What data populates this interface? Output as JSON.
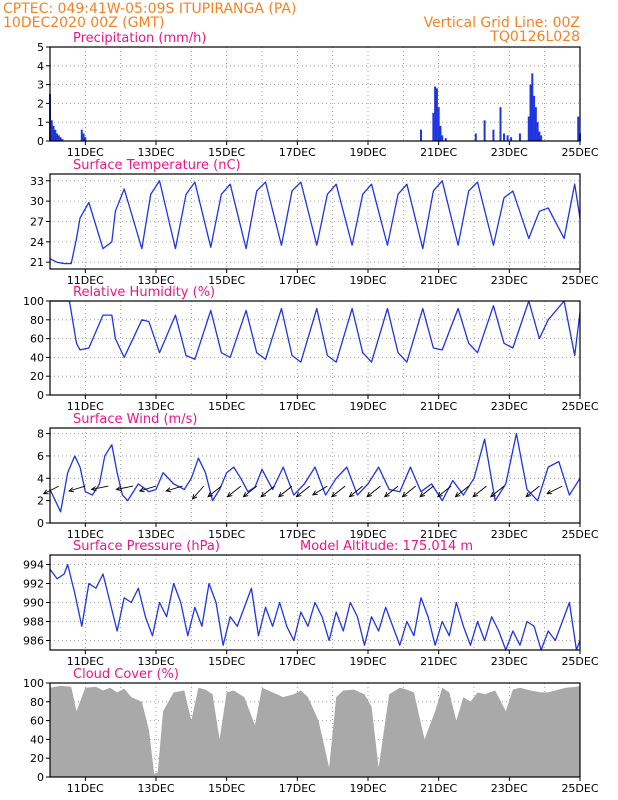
{
  "header": {
    "station_line": "CPTEC:   049:41W-05:09S   ITUPIRANGA (PA)",
    "run_line": "10DEC2020 00Z (GMT)",
    "grid_note": "Vertical Grid Line: 00Z",
    "model_code": "TQ0126L028"
  },
  "colors": {
    "header": "#f58220",
    "titles": "#e8168c",
    "series": "#1f35e0",
    "cloud": "#a9a9a9",
    "frame": "#000000"
  },
  "time_axis": {
    "start_day": 10,
    "end_day": 25,
    "tick_labels": [
      "11DEC",
      "13DEC",
      "15DEC",
      "17DEC",
      "19DEC",
      "21DEC",
      "23DEC",
      "25DEC"
    ],
    "tick_days": [
      11,
      13,
      15,
      17,
      19,
      21,
      23,
      25
    ],
    "vertical_grid": "00Z"
  },
  "chart_data": [
    {
      "type": "bar",
      "title": "Precipitation (mm/h)",
      "ylim": [
        0,
        5
      ],
      "yticks": [
        0,
        1,
        2,
        3,
        4,
        5
      ],
      "x": [
        10.0,
        10.05,
        10.1,
        10.15,
        10.2,
        10.25,
        10.3,
        10.35,
        10.9,
        10.95,
        11.0,
        20.5,
        20.85,
        20.9,
        20.95,
        21.0,
        21.05,
        21.1,
        21.2,
        22.05,
        22.3,
        22.55,
        22.75,
        22.85,
        22.95,
        23.05,
        23.3,
        23.55,
        23.6,
        23.65,
        23.7,
        23.75,
        23.8,
        23.85,
        23.9,
        24.95,
        25.0
      ],
      "values": [
        2.5,
        1.1,
        0.8,
        0.6,
        0.4,
        0.3,
        0.2,
        0.1,
        0.6,
        0.4,
        0.2,
        0.6,
        1.5,
        2.9,
        2.8,
        1.8,
        0.8,
        0.3,
        0.15,
        0.4,
        1.1,
        0.6,
        1.8,
        0.4,
        0.3,
        0.2,
        0.4,
        1.3,
        3.0,
        3.6,
        2.4,
        1.8,
        1.0,
        0.5,
        0.3,
        1.3,
        0.4
      ]
    },
    {
      "type": "line",
      "title": "Surface Temperature (nC)",
      "ylim": [
        20,
        34
      ],
      "yticks": [
        21,
        24,
        27,
        30,
        33
      ],
      "x": [
        10.0,
        10.2,
        10.4,
        10.6,
        10.75,
        10.85,
        11.1,
        11.5,
        11.75,
        11.85,
        12.1,
        12.6,
        12.85,
        13.1,
        13.55,
        13.85,
        14.1,
        14.55,
        14.85,
        15.1,
        15.55,
        15.85,
        16.1,
        16.55,
        16.85,
        17.1,
        17.55,
        17.85,
        18.1,
        18.55,
        18.85,
        19.1,
        19.55,
        19.85,
        20.1,
        20.55,
        20.85,
        21.1,
        21.55,
        21.85,
        22.1,
        22.55,
        22.85,
        23.1,
        23.55,
        23.85,
        24.1,
        24.55,
        24.85,
        25.0
      ],
      "series": [
        {
          "values": [
            21.5,
            21.0,
            20.8,
            20.8,
            24.5,
            27.5,
            29.8,
            23.0,
            24.0,
            28.5,
            31.8,
            23.0,
            31.0,
            33.0,
            23.0,
            31.0,
            32.8,
            23.2,
            31.0,
            32.5,
            23.0,
            31.5,
            32.8,
            23.5,
            31.5,
            32.8,
            23.5,
            31.0,
            32.5,
            23.5,
            31.0,
            32.5,
            23.5,
            31.0,
            32.5,
            23.0,
            31.5,
            33.0,
            23.5,
            31.5,
            32.8,
            23.5,
            30.5,
            31.5,
            24.5,
            28.5,
            29.0,
            24.5,
            32.5,
            27.5
          ]
        }
      ]
    },
    {
      "type": "line",
      "title": "Relative Humidity (%)",
      "ylim": [
        0,
        100
      ],
      "yticks": [
        0,
        20,
        40,
        60,
        80,
        100
      ],
      "x": [
        10.0,
        10.3,
        10.55,
        10.75,
        10.85,
        11.1,
        11.5,
        11.75,
        11.85,
        12.1,
        12.6,
        12.8,
        13.1,
        13.55,
        13.85,
        14.1,
        14.55,
        14.85,
        15.1,
        15.55,
        15.85,
        16.1,
        16.55,
        16.85,
        17.1,
        17.55,
        17.85,
        18.1,
        18.55,
        18.85,
        19.1,
        19.55,
        19.85,
        20.1,
        20.55,
        20.85,
        21.1,
        21.55,
        21.85,
        22.1,
        22.55,
        22.85,
        23.1,
        23.55,
        23.85,
        24.1,
        24.55,
        24.85,
        25.0
      ],
      "series": [
        {
          "values": [
            100,
            100,
            100,
            55,
            48,
            50,
            85,
            85,
            60,
            40,
            80,
            78,
            45,
            85,
            42,
            38,
            90,
            45,
            40,
            90,
            45,
            38,
            92,
            42,
            35,
            92,
            42,
            35,
            92,
            45,
            35,
            92,
            45,
            35,
            92,
            50,
            48,
            92,
            55,
            45,
            95,
            55,
            50,
            100,
            60,
            80,
            100,
            42,
            88
          ]
        }
      ]
    },
    {
      "type": "line",
      "title": "Surface Wind (m/s)",
      "ylim": [
        0,
        8.5
      ],
      "yticks": [
        0,
        2,
        4,
        6,
        8
      ],
      "x": [
        10.0,
        10.15,
        10.3,
        10.5,
        10.7,
        10.85,
        11.0,
        11.2,
        11.4,
        11.55,
        11.75,
        11.9,
        12.05,
        12.2,
        12.5,
        12.8,
        13.0,
        13.2,
        13.5,
        13.8,
        14.0,
        14.2,
        14.4,
        14.6,
        14.8,
        15.0,
        15.2,
        15.4,
        15.6,
        15.8,
        16.0,
        16.3,
        16.6,
        16.9,
        17.2,
        17.5,
        17.8,
        18.1,
        18.4,
        18.7,
        19.0,
        19.3,
        19.6,
        19.9,
        20.2,
        20.5,
        20.8,
        21.1,
        21.4,
        21.7,
        22.0,
        22.3,
        22.6,
        22.9,
        23.2,
        23.5,
        23.8,
        24.1,
        24.4,
        24.7,
        25.0
      ],
      "series": [
        {
          "values": [
            3.0,
            2.0,
            1.0,
            4.5,
            6.0,
            5.0,
            2.8,
            2.5,
            3.5,
            6.0,
            7.0,
            4.5,
            2.5,
            2.0,
            3.5,
            2.8,
            3.0,
            4.5,
            3.5,
            3.0,
            4.0,
            5.8,
            4.5,
            2.0,
            3.0,
            4.5,
            5.0,
            4.0,
            2.8,
            3.2,
            4.8,
            3.0,
            5.0,
            2.5,
            3.5,
            5.0,
            2.5,
            4.0,
            5.0,
            2.5,
            3.5,
            5.0,
            3.0,
            2.8,
            5.0,
            2.8,
            3.5,
            2.0,
            3.8,
            2.5,
            4.0,
            7.5,
            2.0,
            3.5,
            8.0,
            3.0,
            2.0,
            5.0,
            5.5,
            2.5,
            4.0
          ]
        }
      ],
      "wind_vectors": {
        "x": [
          10.25,
          11.0,
          11.65,
          12.35,
          13.0,
          13.75,
          14.35,
          14.85,
          15.4,
          15.85,
          16.35,
          16.85,
          17.35,
          17.85,
          18.35,
          18.85,
          19.35,
          19.85,
          20.35,
          20.85,
          21.35,
          21.85,
          22.35,
          22.85,
          23.85,
          24.5
        ],
        "u": [
          -1.0,
          -1.0,
          -1.0,
          -1.0,
          -1.0,
          -1.0,
          -0.7,
          -1.0,
          -1.0,
          -1.0,
          -1.0,
          -1.0,
          -1.0,
          -1.0,
          -1.0,
          -1.0,
          -1.0,
          -1.0,
          -1.0,
          -1.0,
          -1.0,
          -1.0,
          -1.0,
          -1.0,
          -1.0,
          -1.0
        ],
        "v": [
          -0.5,
          -0.3,
          -0.2,
          -0.2,
          -0.3,
          -0.3,
          -0.8,
          -0.8,
          -0.8,
          -0.8,
          -0.8,
          -0.8,
          -0.8,
          -0.6,
          -0.8,
          -0.8,
          -0.8,
          -0.8,
          -0.8,
          -0.8,
          -0.8,
          -0.8,
          -0.8,
          -0.8,
          -0.8,
          -0.5
        ]
      }
    },
    {
      "type": "line",
      "title": "Surface Pressure (hPa)",
      "annotation": "Model Altitude: 175.014 m",
      "ylim": [
        985,
        995
      ],
      "yticks": [
        986,
        988,
        990,
        992,
        994
      ],
      "x": [
        10.0,
        10.2,
        10.4,
        10.5,
        10.7,
        10.9,
        11.1,
        11.3,
        11.5,
        11.7,
        11.9,
        12.1,
        12.3,
        12.5,
        12.7,
        12.9,
        13.1,
        13.3,
        13.5,
        13.7,
        13.9,
        14.1,
        14.3,
        14.5,
        14.7,
        14.9,
        15.1,
        15.3,
        15.5,
        15.7,
        15.9,
        16.1,
        16.3,
        16.5,
        16.7,
        16.9,
        17.1,
        17.3,
        17.5,
        17.7,
        17.9,
        18.1,
        18.3,
        18.5,
        18.7,
        18.9,
        19.1,
        19.3,
        19.5,
        19.7,
        19.9,
        20.1,
        20.3,
        20.5,
        20.7,
        20.9,
        21.1,
        21.3,
        21.5,
        21.7,
        21.9,
        22.1,
        22.3,
        22.5,
        22.7,
        22.9,
        23.1,
        23.3,
        23.5,
        23.7,
        23.9,
        24.1,
        24.3,
        24.5,
        24.7,
        24.9,
        25.0
      ],
      "series": [
        {
          "values": [
            993.5,
            992.5,
            993.0,
            994.0,
            991.0,
            987.5,
            992.0,
            991.5,
            993.0,
            990.0,
            987.0,
            990.5,
            990.0,
            991.5,
            988.5,
            986.5,
            990.0,
            988.5,
            992.0,
            990.0,
            986.5,
            989.5,
            987.5,
            992.0,
            990.0,
            985.5,
            988.5,
            987.5,
            989.5,
            991.5,
            986.5,
            989.5,
            987.5,
            990.0,
            987.5,
            986.0,
            989.0,
            987.5,
            990.0,
            988.5,
            986.0,
            989.0,
            987.0,
            990.0,
            988.5,
            985.5,
            988.5,
            987.0,
            989.5,
            987.5,
            985.5,
            988.0,
            986.5,
            990.5,
            988.5,
            985.5,
            988.0,
            986.5,
            990.0,
            987.5,
            985.5,
            988.0,
            986.0,
            988.5,
            987.0,
            985.0,
            987.0,
            985.5,
            988.0,
            987.5,
            985.0,
            987.0,
            986.0,
            988.0,
            990.0,
            985.0,
            986.0
          ]
        }
      ]
    },
    {
      "type": "area",
      "title": "Cloud Cover (%)",
      "ylim": [
        0,
        100
      ],
      "yticks": [
        0,
        20,
        40,
        60,
        80,
        100
      ],
      "x": [
        10.0,
        10.3,
        10.6,
        10.75,
        11.0,
        11.3,
        11.5,
        11.7,
        11.9,
        12.1,
        12.3,
        12.6,
        12.8,
        12.95,
        13.05,
        13.2,
        13.5,
        13.8,
        14.0,
        14.2,
        14.4,
        14.6,
        14.8,
        15.0,
        15.2,
        15.5,
        15.8,
        16.0,
        16.3,
        16.6,
        16.9,
        17.1,
        17.3,
        17.6,
        17.9,
        18.1,
        18.3,
        18.6,
        18.9,
        19.1,
        19.3,
        19.6,
        19.9,
        20.1,
        20.3,
        20.6,
        20.9,
        21.1,
        21.3,
        21.5,
        21.7,
        21.9,
        22.1,
        22.3,
        22.6,
        22.9,
        23.1,
        23.3,
        23.6,
        23.9,
        24.1,
        24.3,
        24.6,
        24.9,
        25.0
      ],
      "series": [
        {
          "values": [
            95,
            97,
            96,
            70,
            95,
            96,
            92,
            95,
            90,
            94,
            85,
            80,
            50,
            3,
            5,
            70,
            90,
            92,
            60,
            95,
            93,
            88,
            40,
            90,
            92,
            85,
            55,
            95,
            90,
            85,
            88,
            92,
            85,
            60,
            10,
            85,
            92,
            93,
            88,
            75,
            10,
            88,
            95,
            93,
            90,
            40,
            70,
            95,
            90,
            60,
            85,
            80,
            90,
            88,
            92,
            70,
            93,
            95,
            92,
            90,
            90,
            92,
            95,
            96,
            97
          ]
        }
      ]
    }
  ]
}
